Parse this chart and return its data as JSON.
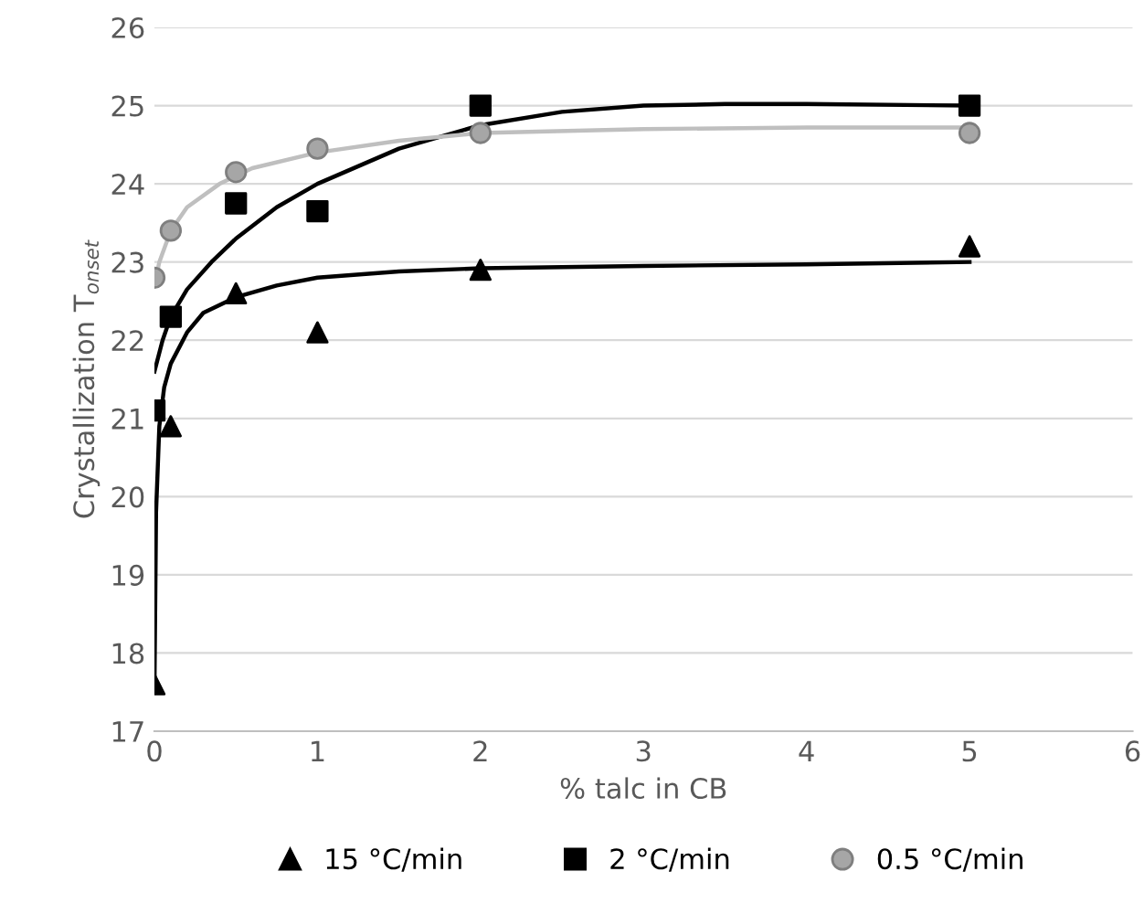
{
  "chart_data": {
    "type": "scatter",
    "xlabel": "% talc in CB",
    "ylabel": "Crystallization T$_{onset}$",
    "xlim": [
      0,
      6
    ],
    "ylim": [
      17,
      26
    ],
    "xticks": [
      0,
      1,
      2,
      3,
      4,
      5,
      6
    ],
    "yticks": [
      17,
      18,
      19,
      20,
      21,
      22,
      23,
      24,
      25,
      26
    ],
    "grid": "y",
    "legend": "bottom",
    "series": [
      {
        "name": "15 °C/min",
        "color": "#000000",
        "marker": "triangle",
        "x": [
          0,
          0.1,
          0.5,
          1,
          2,
          5
        ],
        "values": [
          17.6,
          20.9,
          22.6,
          22.1,
          22.9,
          23.2
        ]
      },
      {
        "name": "2 °C/min",
        "color": "#000000",
        "marker": "square",
        "x": [
          0,
          0.1,
          0.5,
          1,
          2,
          5
        ],
        "values": [
          21.1,
          22.3,
          23.75,
          23.65,
          25.0,
          25.0
        ]
      },
      {
        "name": "0.5 °C/min",
        "color": "#a6a6a6",
        "marker": "circle",
        "x": [
          0,
          0.1,
          0.5,
          1,
          2,
          5
        ],
        "values": [
          22.8,
          23.4,
          24.15,
          24.45,
          24.65,
          24.65
        ]
      },
      {
        "type": "line",
        "color": "#000000",
        "marker": "none",
        "x": [
          0,
          0.01,
          0.03,
          0.06,
          0.1,
          0.2,
          0.3,
          0.5,
          0.75,
          1,
          1.5,
          2,
          3,
          4,
          5
        ],
        "values": [
          17.5,
          19.8,
          20.9,
          21.4,
          21.7,
          22.1,
          22.35,
          22.55,
          22.7,
          22.8,
          22.88,
          22.92,
          22.95,
          22.97,
          23.0
        ]
      },
      {
        "type": "line",
        "color": "#000000",
        "marker": "none",
        "x": [
          0,
          0.05,
          0.1,
          0.2,
          0.35,
          0.5,
          0.75,
          1,
          1.5,
          2,
          2.5,
          3,
          3.5,
          4,
          5
        ],
        "values": [
          21.6,
          22.0,
          22.3,
          22.65,
          23.0,
          23.3,
          23.7,
          24.0,
          24.45,
          24.75,
          24.92,
          25.0,
          25.02,
          25.02,
          25.0
        ]
      },
      {
        "type": "line",
        "color": "#bfbfbf",
        "marker": "none",
        "x": [
          0,
          0.03,
          0.1,
          0.2,
          0.4,
          0.6,
          1,
          1.5,
          2,
          3,
          4,
          5
        ],
        "values": [
          22.7,
          23.0,
          23.4,
          23.7,
          24.0,
          24.2,
          24.4,
          24.55,
          24.65,
          24.7,
          24.72,
          24.72
        ]
      }
    ]
  }
}
